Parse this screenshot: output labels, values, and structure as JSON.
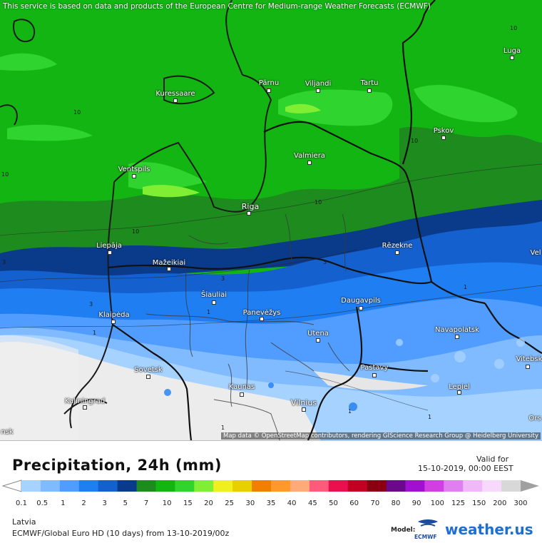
{
  "notice": "This service is based on data and products of the European Centre for Medium-range Weather Forecasts (ECMWF)",
  "attribution": "Map data © OpenStreetMap contributors, rendering GIScience Research Group @ Heidelberg University",
  "title": "Precipitation, 24h (mm)",
  "valid_label": "Valid for",
  "valid_time": "15-10-2019, 00:00 EEST",
  "region": "Latvia",
  "model": "ECMWF/Global Euro HD (10 days) from 13-10-2019/00z",
  "model_label": "Model:",
  "model_logo_text": "ECMWF",
  "brand": "weather.us",
  "scale": {
    "ticks": [
      "0.1",
      "0.5",
      "1",
      "2",
      "3",
      "5",
      "7",
      "10",
      "15",
      "20",
      "25",
      "30",
      "35",
      "40",
      "45",
      "50",
      "60",
      "70",
      "80",
      "90",
      "100",
      "125",
      "150",
      "200",
      "300"
    ],
    "colors": [
      "#a6d2ff",
      "#80bbff",
      "#509dff",
      "#1f7ef2",
      "#1560cf",
      "#0a3a8a",
      "#1e8b1e",
      "#13b513",
      "#2fd42f",
      "#80ee33",
      "#f0f020",
      "#e8d000",
      "#f08000",
      "#ff9a2a",
      "#ffaa7a",
      "#ff5a7a",
      "#ea1050",
      "#c40022",
      "#8a0010",
      "#6a0a8a",
      "#a010d0",
      "#d040e0",
      "#e080f0",
      "#f0b8f8",
      "#f8d8fc",
      "#d8d8d8"
    ]
  },
  "cities": [
    {
      "name": "Kuressaare"
    },
    {
      "name": "Pärnu"
    },
    {
      "name": "Viljandi"
    },
    {
      "name": "Tartu"
    },
    {
      "name": "Luga"
    },
    {
      "name": "Pskov"
    },
    {
      "name": "Valmiera"
    },
    {
      "name": "Ventspils"
    },
    {
      "name": "Riga"
    },
    {
      "name": "Liepāja"
    },
    {
      "name": "Rēzekne"
    },
    {
      "name": "Mažeikiai"
    },
    {
      "name": "Šiauliai"
    },
    {
      "name": "Klaipėda"
    },
    {
      "name": "Panevėžys"
    },
    {
      "name": "Daugavpils"
    },
    {
      "name": "Utena"
    },
    {
      "name": "Navapolatsk"
    },
    {
      "name": "Vitebsk"
    },
    {
      "name": "Sovetsk"
    },
    {
      "name": "Pastavy"
    },
    {
      "name": "Kaunas"
    },
    {
      "name": "Lepiel"
    },
    {
      "name": "Kaliningrad"
    },
    {
      "name": "Vilnius"
    },
    {
      "name": "Vel"
    },
    {
      "name": "Ors"
    },
    {
      "name": "nsk"
    }
  ],
  "contour_labels": [
    "10",
    "10",
    "10",
    "10",
    "10",
    "10",
    "3",
    "3",
    "3",
    "1",
    "1",
    "1",
    "1",
    "1",
    "1",
    "3"
  ]
}
